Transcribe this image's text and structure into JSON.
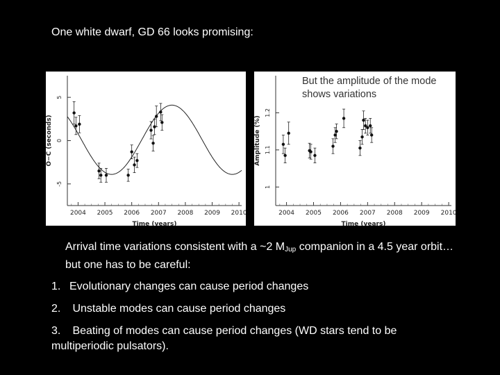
{
  "heading": "One white dwarf, GD 66 looks promising:",
  "panel_note": "But the amplitude of the mode shows variations",
  "paragraph": {
    "pre": "Arrival time variations consistent with a ~2 M",
    "sub": "Jup",
    "post": " companion in a 4.5 year orbit…but one has to be careful:"
  },
  "list": [
    {
      "num": "1.",
      "text": "Evolutionary changes can cause period changes"
    },
    {
      "num": "2.",
      "text": " Unstable modes can cause period changes"
    },
    {
      "num": "3.",
      "text": " Beating of modes can cause period changes (WD stars tend to be multiperiodic pulsators)."
    }
  ],
  "chart_data": [
    {
      "type": "scatter",
      "xlabel": "Time (years)",
      "ylabel": "O−C (seconds)",
      "xlim": [
        2003.6,
        2010.1
      ],
      "ylim": [
        -7.5,
        7.5
      ],
      "xticks": [
        "2004",
        "2005",
        "2006",
        "2007",
        "2008",
        "2009",
        "2010"
      ],
      "xtick_values": [
        2004,
        2005,
        2006,
        2007,
        2008,
        2009,
        2010
      ],
      "yticks": [
        "-5",
        "0",
        "5"
      ],
      "ytick_values": [
        -5,
        0,
        5
      ],
      "points": [
        {
          "x": 2003.85,
          "y": 3.2,
          "err": 1.3
        },
        {
          "x": 2003.92,
          "y": 1.7,
          "err": 1.0
        },
        {
          "x": 2004.05,
          "y": 1.9,
          "err": 1.0
        },
        {
          "x": 2004.78,
          "y": -3.5,
          "err": 0.9
        },
        {
          "x": 2004.85,
          "y": -4.0,
          "err": 0.8
        },
        {
          "x": 2005.05,
          "y": -4.0,
          "err": 0.8
        },
        {
          "x": 2005.87,
          "y": -4.0,
          "err": 0.7
        },
        {
          "x": 2006.0,
          "y": -1.3,
          "err": 0.8
        },
        {
          "x": 2006.1,
          "y": -2.8,
          "err": 0.9
        },
        {
          "x": 2006.2,
          "y": -2.3,
          "err": 0.8
        },
        {
          "x": 2006.72,
          "y": 1.2,
          "err": 1.0
        },
        {
          "x": 2006.8,
          "y": -0.3,
          "err": 0.9
        },
        {
          "x": 2006.85,
          "y": 1.6,
          "err": 0.9
        },
        {
          "x": 2006.92,
          "y": 2.8,
          "err": 1.2
        },
        {
          "x": 2007.08,
          "y": 3.3,
          "err": 1.0
        },
        {
          "x": 2007.13,
          "y": 2.1,
          "err": 0.9
        }
      ],
      "fit_curve": {
        "period_years": 4.5,
        "amplitude": 4.0,
        "offset": 0.1,
        "peak_year": 2007.5
      }
    },
    {
      "type": "scatter",
      "xlabel": "Time (years)",
      "ylabel": "Amplitude (%)",
      "xlim": [
        2003.6,
        2010.1
      ],
      "ylim": [
        0.95,
        1.3
      ],
      "xticks": [
        "2004",
        "2005",
        "2006",
        "2007",
        "2008",
        "2009",
        "2010"
      ],
      "xtick_values": [
        2004,
        2005,
        2006,
        2007,
        2008,
        2009,
        2010
      ],
      "yticks": [
        "1",
        "1.1",
        "1.2"
      ],
      "ytick_values": [
        1.0,
        1.1,
        1.2
      ],
      "points": [
        {
          "x": 2003.88,
          "y": 1.115,
          "err": 0.025
        },
        {
          "x": 2003.95,
          "y": 1.085,
          "err": 0.02
        },
        {
          "x": 2004.08,
          "y": 1.145,
          "err": 0.03
        },
        {
          "x": 2004.85,
          "y": 1.098,
          "err": 0.02
        },
        {
          "x": 2004.9,
          "y": 1.095,
          "err": 0.02
        },
        {
          "x": 2005.05,
          "y": 1.085,
          "err": 0.02
        },
        {
          "x": 2005.72,
          "y": 1.11,
          "err": 0.02
        },
        {
          "x": 2005.8,
          "y": 1.14,
          "err": 0.02
        },
        {
          "x": 2005.85,
          "y": 1.15,
          "err": 0.02
        },
        {
          "x": 2006.12,
          "y": 1.185,
          "err": 0.025
        },
        {
          "x": 2006.72,
          "y": 1.105,
          "err": 0.02
        },
        {
          "x": 2006.8,
          "y": 1.135,
          "err": 0.02
        },
        {
          "x": 2006.85,
          "y": 1.18,
          "err": 0.025
        },
        {
          "x": 2006.92,
          "y": 1.165,
          "err": 0.02
        },
        {
          "x": 2007.0,
          "y": 1.16,
          "err": 0.02
        },
        {
          "x": 2007.1,
          "y": 1.165,
          "err": 0.02
        },
        {
          "x": 2007.15,
          "y": 1.14,
          "err": 0.02
        }
      ]
    }
  ]
}
